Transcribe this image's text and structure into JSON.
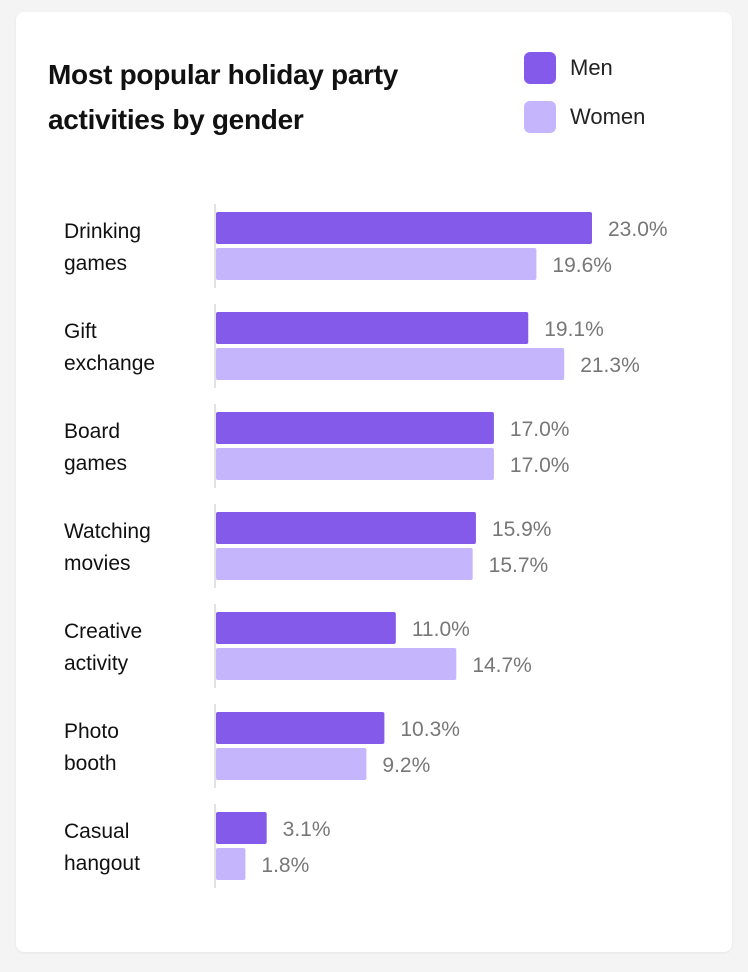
{
  "chart_data": {
    "type": "bar",
    "orientation": "horizontal",
    "title": "Most popular holiday party activities by gender",
    "categories": [
      [
        "Drinking",
        "games"
      ],
      [
        "Gift",
        "exchange"
      ],
      [
        "Board",
        "games"
      ],
      [
        "Watching",
        "movies"
      ],
      [
        "Creative",
        "activity"
      ],
      [
        "Photo",
        "booth"
      ],
      [
        "Casual",
        "hangout"
      ]
    ],
    "series": [
      {
        "name": "Men",
        "color": "#845AEA",
        "values": [
          23.0,
          19.1,
          17.0,
          15.9,
          11.0,
          10.3,
          3.1
        ],
        "labels": [
          "23.0%",
          "19.1%",
          "17.0%",
          "15.9%",
          "11.0%",
          "10.3%",
          "3.1%"
        ]
      },
      {
        "name": "Women",
        "color": "#C4B5FD",
        "values": [
          19.6,
          21.3,
          17.0,
          15.7,
          14.7,
          9.2,
          1.8
        ],
        "labels": [
          "19.6%",
          "21.3%",
          "17.0%",
          "15.7%",
          "14.7%",
          "9.2%",
          "1.8%"
        ]
      }
    ],
    "xlabel": "",
    "ylabel": "",
    "xlim": [
      0,
      25
    ],
    "grid": false,
    "legend": "top-right"
  }
}
